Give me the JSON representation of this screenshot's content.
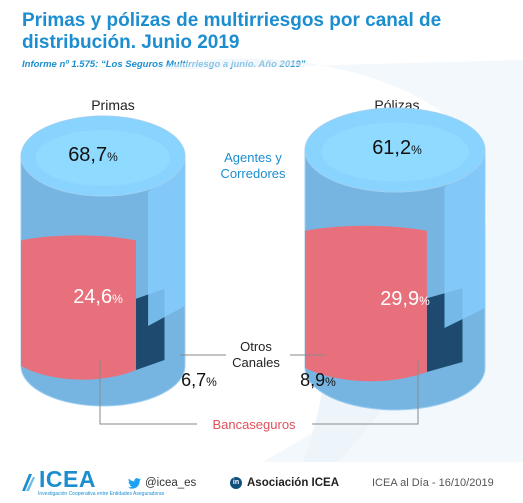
{
  "title": "Primas y pólizas de multirriesgos por canal de distribución. Junio 2019",
  "subtitle": "Informe nº 1.575: “Los Seguros Multirriesgo a junio. Año 2019”",
  "chart_data": [
    {
      "type": "pie",
      "title": "Primas",
      "slices": [
        {
          "label": "Agentes y Corredores",
          "value": 68.7,
          "value_label": "68,7",
          "color": "#7fc3f2"
        },
        {
          "label": "Bancaseguros",
          "value": 24.6,
          "value_label": "24,6",
          "color": "#e8707c"
        },
        {
          "label": "Otros Canales",
          "value": 6.7,
          "value_label": "6,7",
          "color": "#1d4a6e"
        }
      ]
    },
    {
      "type": "pie",
      "title": "Pólizas",
      "slices": [
        {
          "label": "Agentes y Corredores",
          "value": 61.2,
          "value_label": "61,2",
          "color": "#7fc3f2"
        },
        {
          "label": "Bancaseguros",
          "value": 29.9,
          "value_label": "29,9",
          "color": "#e8707c"
        },
        {
          "label": "Otros Canales",
          "value": 8.9,
          "value_label": "8,9",
          "color": "#1d4a6e"
        }
      ]
    }
  ],
  "legend": {
    "agentes_line1": "Agentes y",
    "agentes_line2": "Corredores",
    "otros_line1": "Otros",
    "otros_line2": "Canales",
    "banca": "Bancaseguros"
  },
  "percent_sign": "%",
  "footer": {
    "logo": "ICEA",
    "logo_sub": "Investigación Cooperativa entre Entidades Aseguradoras",
    "twitter": "@icea_es",
    "twitter_icon": "twitter-bird-icon",
    "linkedin": "Asociación ICEA",
    "linkedin_icon_text": "in",
    "date": "ICEA al Día - 16/10/2019"
  }
}
